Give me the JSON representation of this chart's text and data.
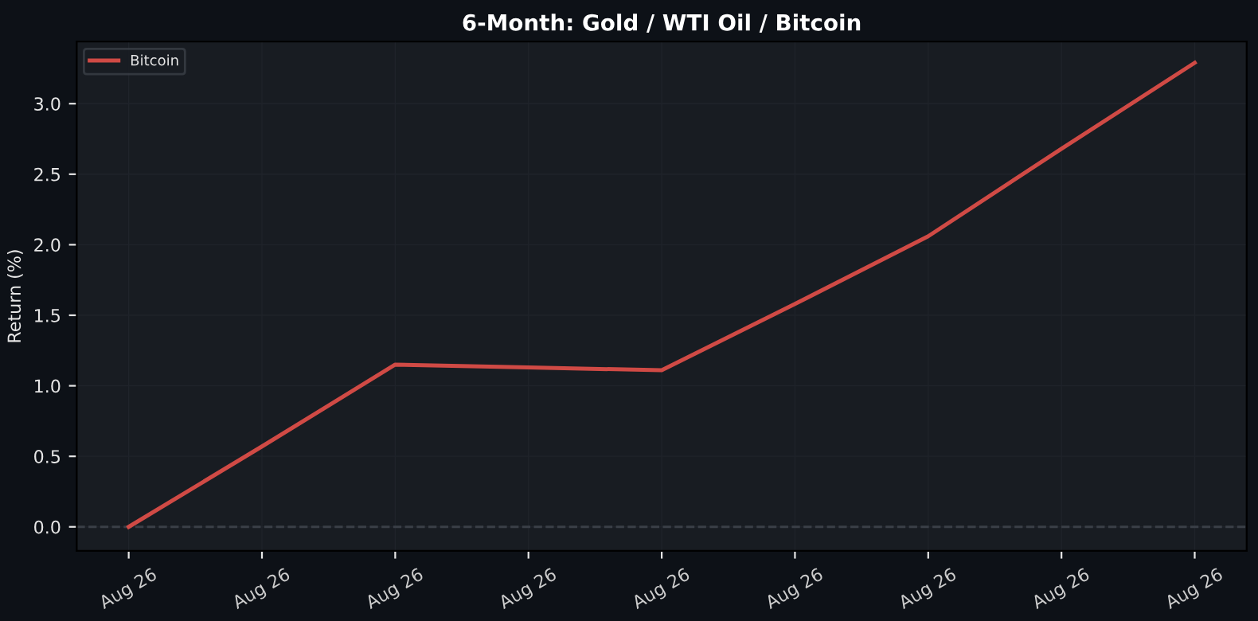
{
  "chart_data": {
    "type": "line",
    "title": "6-Month: Gold / WTI Oil / Bitcoin",
    "ylabel": "Return (%)",
    "categories": [
      "Aug 26",
      "Aug 26",
      "Aug 26",
      "Aug 26",
      "Aug 26",
      "Aug 26",
      "Aug 26",
      "Aug 26",
      "Aug 26"
    ],
    "series": [
      {
        "name": "Bitcoin",
        "color": "#d04a45",
        "values": [
          0.0,
          0.57,
          1.15,
          1.13,
          1.11,
          1.58,
          2.06,
          2.68,
          3.29
        ]
      }
    ],
    "ylim": [
      -0.17,
      3.44
    ],
    "yticks": [
      {
        "value": 0,
        "label": "0.0"
      },
      {
        "value": 0.5,
        "label": "0.5"
      },
      {
        "value": 1,
        "label": "1.0"
      },
      {
        "value": 1.5,
        "label": "1.5"
      },
      {
        "value": 2,
        "label": "2.0"
      },
      {
        "value": 2.5,
        "label": "2.5"
      },
      {
        "value": 3,
        "label": "3.0"
      }
    ],
    "ref_lines": [
      {
        "axis": "y",
        "value": 0,
        "color": "#3a3f47",
        "line_style": "dashed"
      }
    ],
    "grid": true,
    "legend": "top left",
    "marker": "none",
    "line_style": "solid"
  }
}
